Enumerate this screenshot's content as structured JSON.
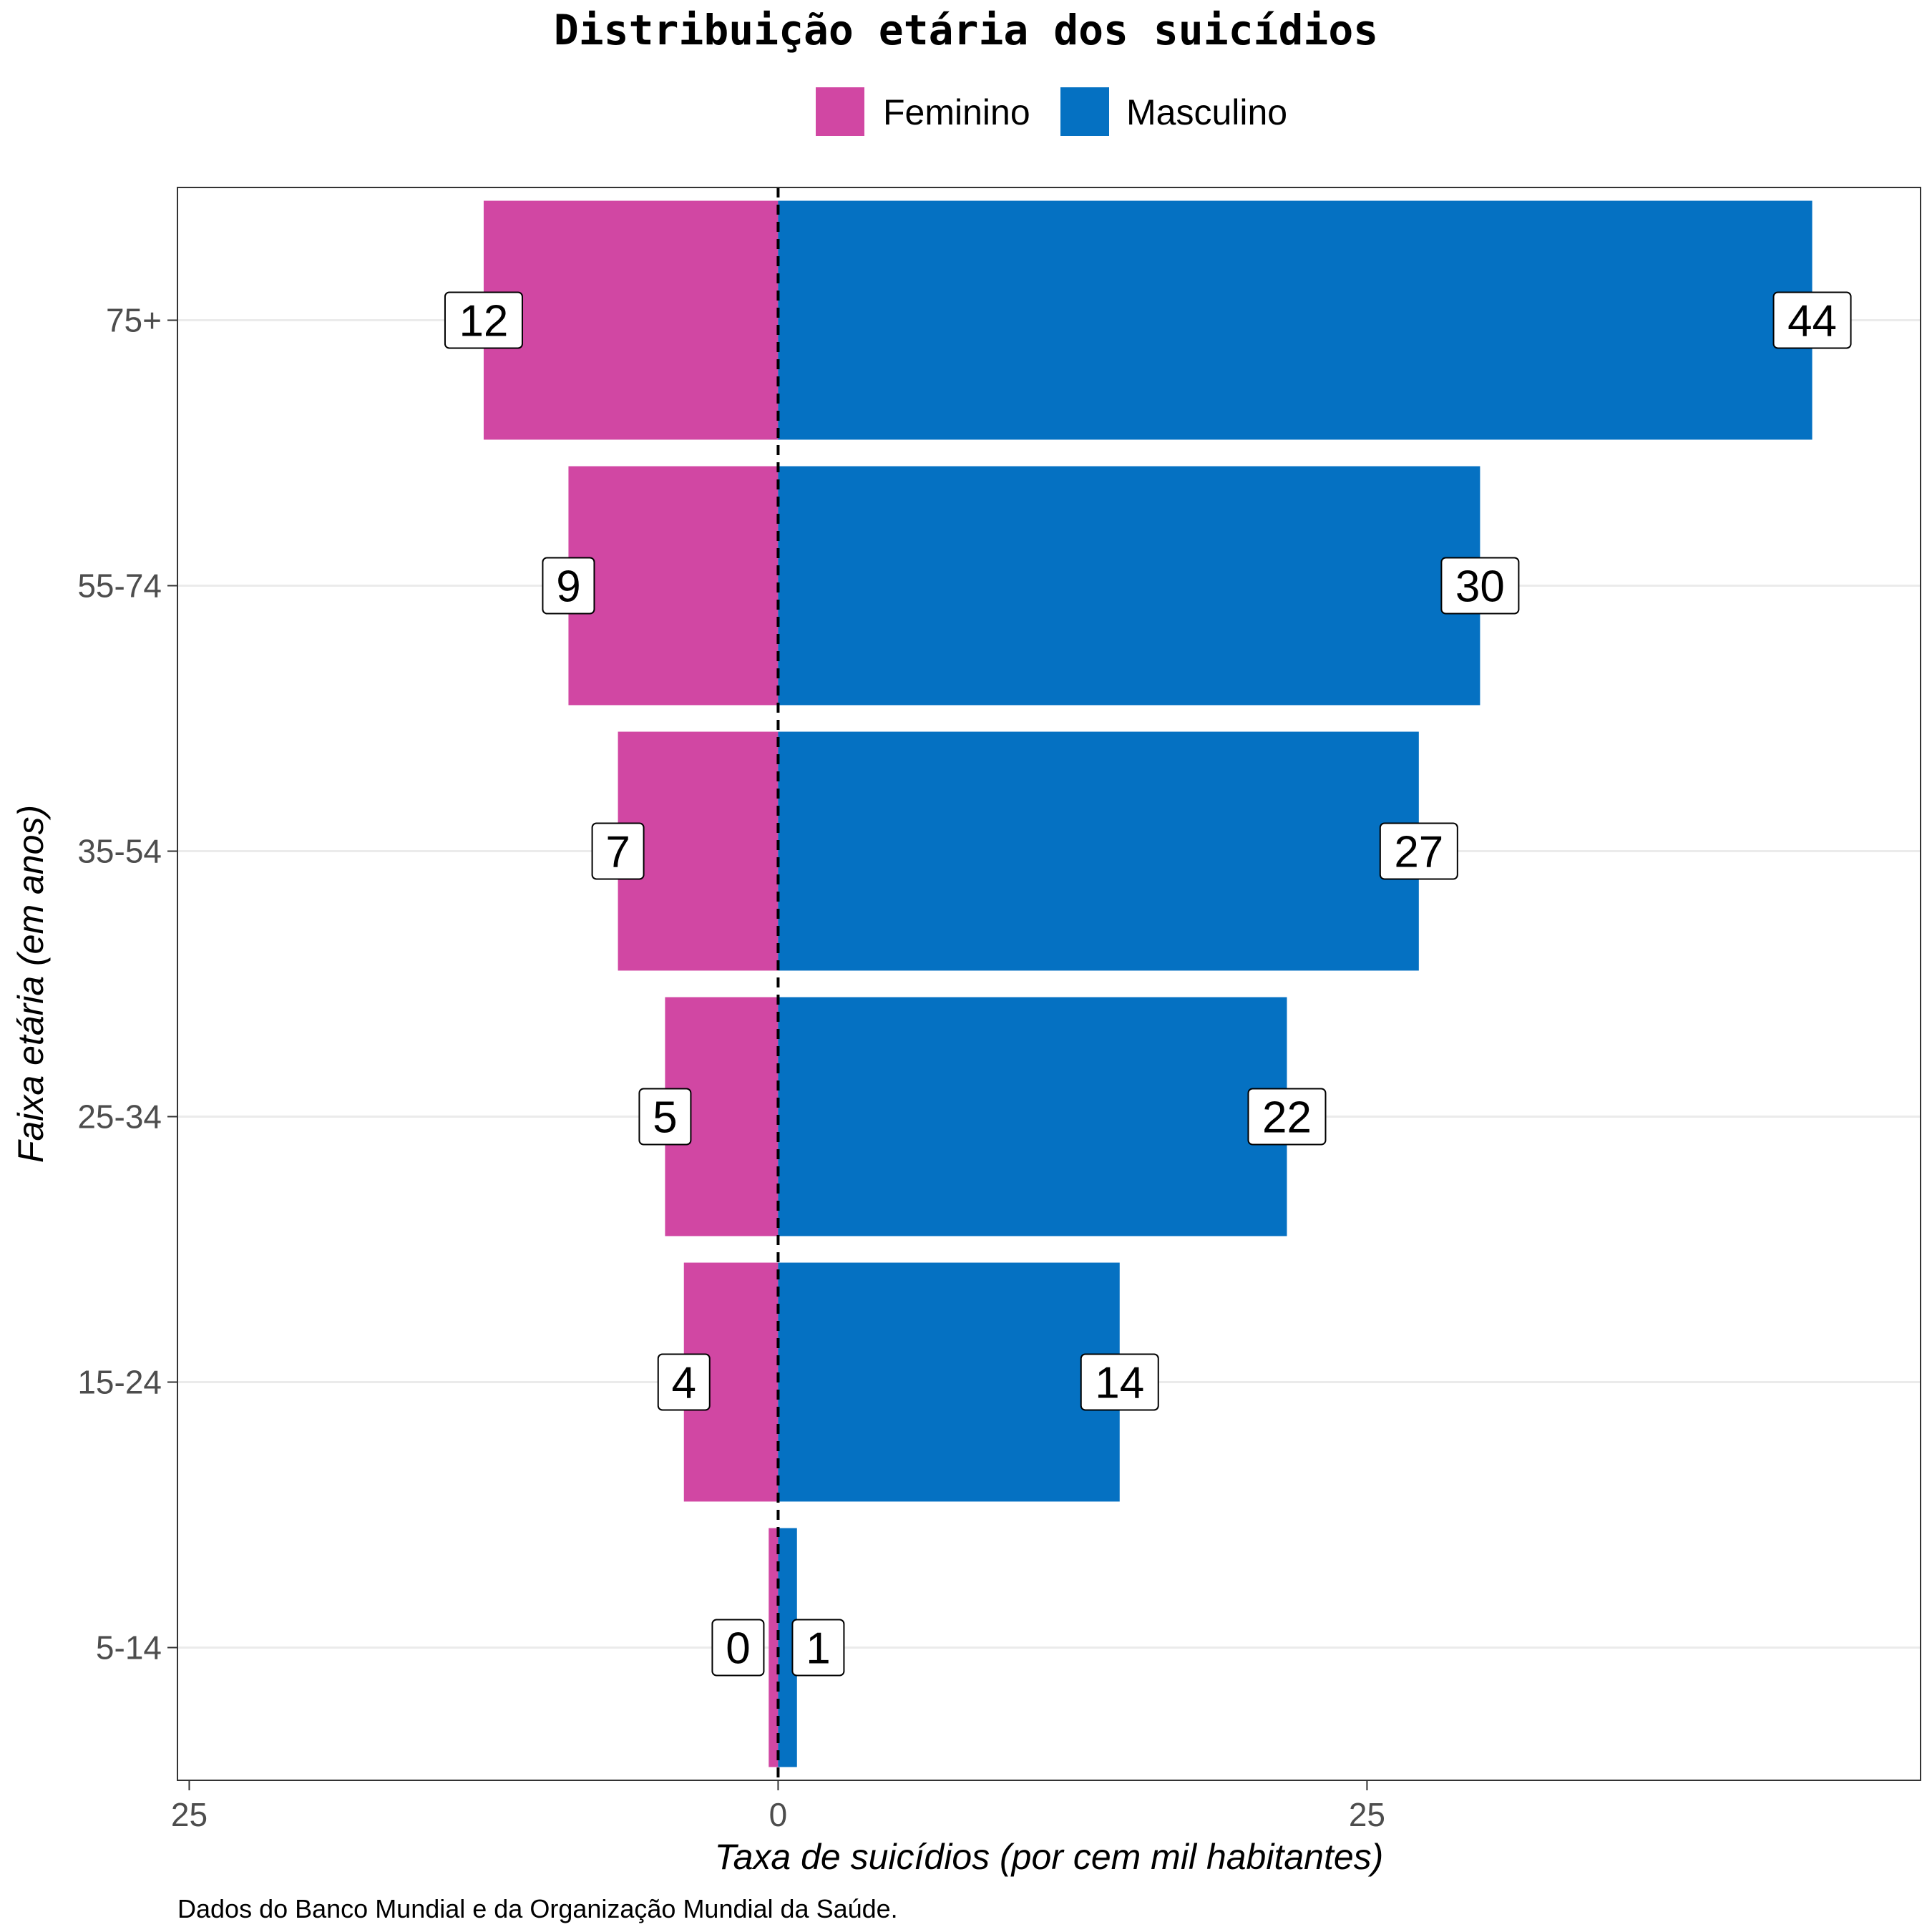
{
  "chart_data": {
    "type": "bar",
    "orientation": "horizontal-diverging",
    "title": "Distribuição etária dos suicídios",
    "xlabel": "Taxa de suicídios (por cem mil habitantes)",
    "ylabel": "Faixa etária (em anos)",
    "caption": "Dados do Banco Mundial e da Organização Mundial da Saúde.",
    "categories": [
      "5-14",
      "15-24",
      "25-34",
      "35-54",
      "55-74",
      "75+"
    ],
    "series": [
      {
        "name": "Feminino",
        "color": "#D147A3",
        "values": [
          0.4,
          4,
          4.8,
          6.8,
          8.9,
          12.5
        ],
        "labels": [
          "0",
          "4",
          "5",
          "7",
          "9",
          "12"
        ]
      },
      {
        "name": "Masculino",
        "color": "#0571C2",
        "values": [
          0.8,
          14.5,
          21.6,
          27.2,
          29.8,
          43.9
        ],
        "labels": [
          "1",
          "14",
          "22",
          "27",
          "30",
          "44"
        ]
      }
    ],
    "xlim": [
      -25.5,
      48.5
    ],
    "x_ticks": [
      -25,
      0,
      25
    ],
    "x_tick_labels": [
      "25",
      "0",
      "25"
    ],
    "legend_position": "top",
    "grid": "horizontal-major",
    "zero_line": "dashed"
  }
}
